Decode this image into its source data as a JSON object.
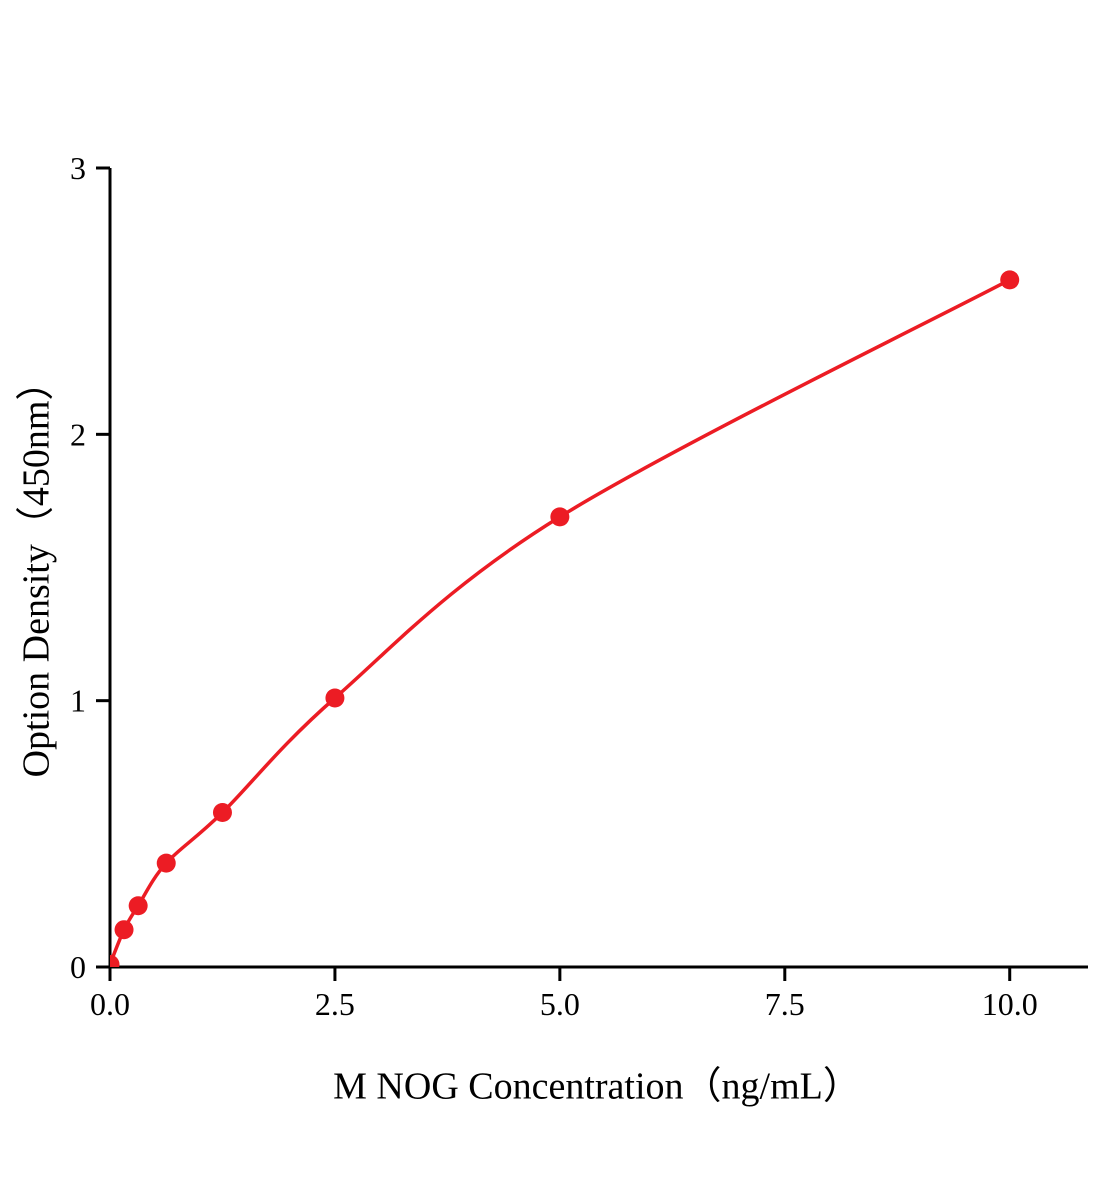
{
  "chart_data": {
    "type": "scatter",
    "title": "",
    "xlabel": "M NOG Concentration（ng/mL）",
    "ylabel": "Option Density（450nm）",
    "x": [
      0,
      0.156,
      0.313,
      0.625,
      1.25,
      2.5,
      5,
      10
    ],
    "y": [
      0.01,
      0.14,
      0.23,
      0.39,
      0.58,
      1.01,
      1.69,
      2.58
    ],
    "xlim": [
      0,
      10.87
    ],
    "ylim": [
      0,
      3
    ],
    "x_ticks": [
      0,
      2.5,
      5,
      7.5,
      10
    ],
    "x_tick_labels": [
      "0.0",
      "2.5",
      "5.0",
      "7.5",
      "10.0"
    ],
    "y_ticks": [
      0,
      1,
      2,
      3
    ],
    "y_tick_labels": [
      "0",
      "1",
      "2",
      "3"
    ],
    "grid": false,
    "legend": "none",
    "line_color": "#ec1c24",
    "marker_color": "#ec1c24",
    "axis_color": "#000000",
    "tick_label_size": 32,
    "marker_radius": 9.5,
    "line_width": 3.5
  }
}
